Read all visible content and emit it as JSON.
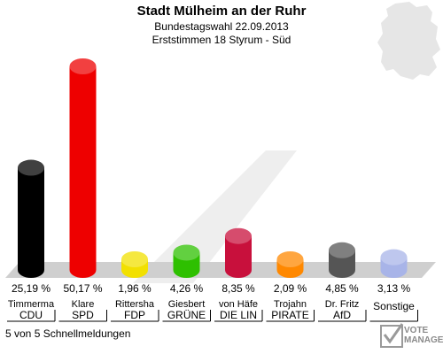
{
  "header": {
    "title": "Stadt Mülheim an der Ruhr",
    "subtitle": "Bundestagswahl 22.09.2013",
    "district": "Erststimmen 18 Styrum - Süd"
  },
  "footer": {
    "text": "5 von 5 Schnellmeldungen"
  },
  "logo": {
    "line1": "VOTE",
    "line2": "MANAGER"
  },
  "chart_data": {
    "type": "bar",
    "categories": [
      "CDU",
      "SPD",
      "FDP",
      "GRÜNE",
      "DIE LIN",
      "PIRATE",
      "AfD",
      "Sonstige"
    ],
    "candidates": [
      "Timmerma",
      "Klare",
      "Rittersha",
      "Giesbert",
      "von Häfe",
      "Trojahn",
      "Dr. Fritz",
      ""
    ],
    "values": [
      25.19,
      50.17,
      1.96,
      4.26,
      8.35,
      2.09,
      4.85,
      3.13
    ],
    "value_labels": [
      "25,19 %",
      "50,17 %",
      "1,96 %",
      "4,26 %",
      "8,35 %",
      "2,09 %",
      "4,85 %",
      "3,13 %"
    ],
    "colors": [
      "#000000",
      "#ee0000",
      "#f2e000",
      "#2ec000",
      "#c8103c",
      "#ff8800",
      "#555555",
      "#a8b4e8"
    ],
    "ylim": [
      0,
      52
    ]
  }
}
